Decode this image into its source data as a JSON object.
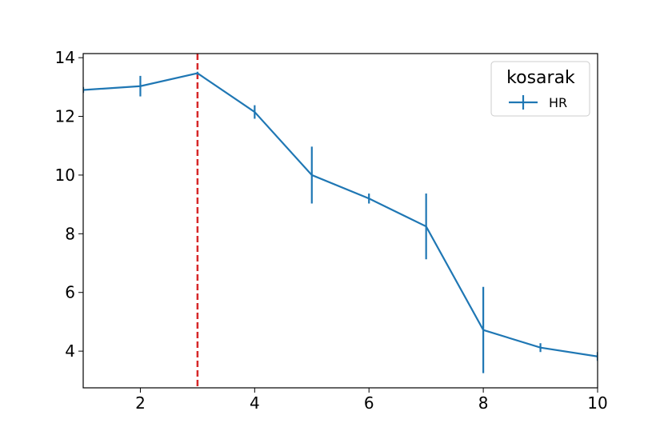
{
  "chart_data": {
    "type": "line",
    "x": [
      1,
      2,
      3,
      4,
      5,
      6,
      7,
      8,
      9,
      10
    ],
    "series": [
      {
        "name": "HR",
        "color": "#1f77b4",
        "values": [
          12.9,
          13.03,
          13.47,
          12.15,
          10.0,
          9.2,
          8.25,
          4.72,
          4.12,
          3.82
        ],
        "errors": [
          0.1,
          0.35,
          0.05,
          0.23,
          0.97,
          0.17,
          1.12,
          1.47,
          0.15,
          0.15
        ]
      }
    ],
    "xlim": [
      1,
      10
    ],
    "xticks": [
      2,
      4,
      6,
      8,
      10
    ],
    "ylim": [
      2.75,
      14.14
    ],
    "yticks": [
      4,
      6,
      8,
      10,
      12,
      14
    ],
    "vlines": [
      {
        "x": 3,
        "color": "#d62728"
      }
    ],
    "legend_title": "kosarak",
    "legend": "upper right",
    "grid": false
  }
}
